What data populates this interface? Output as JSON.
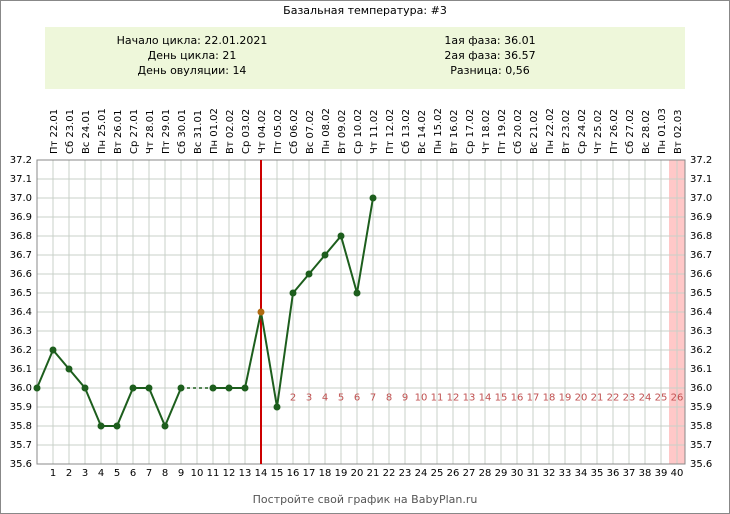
{
  "chart_data": {
    "type": "line",
    "title": "Базальная температура: #3",
    "info_left": [
      "Начало цикла: 22.01.2021",
      "День цикла: 21",
      "День овуляции: 14"
    ],
    "info_right": [
      "1ая фаза: 36.01",
      "2ая фаза: 36.57",
      "Разница: 0,56"
    ],
    "footer": "Постройте свой график на BabyPlan.ru",
    "x_top_labels": [
      "Пт 22.01",
      "Сб 23.01",
      "Вс 24.01",
      "Пн 25.01",
      "Вт 26.01",
      "Ср 27.01",
      "Чт 28.01",
      "Пт 29.01",
      "Сб 30.01",
      "Вс 31.01",
      "Пн 01.02",
      "Вт 02.02",
      "Ср 03.02",
      "Чт 04.02",
      "Пт 05.02",
      "Сб 06.02",
      "Вс 07.02",
      "Пн 08.02",
      "Вт 09.02",
      "Ср 10.02",
      "Чт 11.02",
      "Пт 12.02",
      "Сб 13.02",
      "Вс 14.02",
      "Пн 15.02",
      "Вт 16.02",
      "Ср 17.02",
      "Чт 18.02",
      "Пт 19.02",
      "Сб 20.02",
      "Вс 21.02",
      "Пн 22.02",
      "Вт 23.02",
      "Ср 24.02",
      "Чт 25.02",
      "Пт 26.02",
      "Сб 27.02",
      "Вс 28.02",
      "Пн 01.03",
      "Вт 02.03"
    ],
    "xlim": [
      0,
      40.5
    ],
    "xticks": [
      1,
      2,
      3,
      4,
      5,
      6,
      7,
      8,
      9,
      10,
      11,
      12,
      13,
      14,
      15,
      16,
      17,
      18,
      19,
      20,
      21,
      22,
      23,
      24,
      25,
      26,
      27,
      28,
      29,
      30,
      31,
      32,
      33,
      34,
      35,
      36,
      37,
      38,
      39,
      40
    ],
    "phase_day_numbers": [
      null,
      null,
      null,
      null,
      null,
      null,
      null,
      null,
      null,
      null,
      null,
      null,
      null,
      null,
      null,
      2,
      3,
      4,
      5,
      6,
      7,
      8,
      9,
      10,
      11,
      12,
      13,
      14,
      15,
      16,
      17,
      18,
      19,
      20,
      21,
      22,
      23,
      24,
      25,
      26
    ],
    "phase_day_level": 35.95,
    "ylim": [
      35.6,
      37.2
    ],
    "yticks": [
      35.6,
      35.7,
      35.8,
      35.9,
      {
        "value": 36,
        "label": "36.0"
      },
      36.1,
      36.2,
      36.3,
      36.4,
      36.5,
      36.6,
      36.7,
      36.8,
      36.9,
      {
        "value": 37,
        "label": "37.0"
      },
      37.1,
      37.2
    ],
    "grid": true,
    "series": [
      {
        "color": "#1d5e1d",
        "x": [
          0,
          1,
          2,
          3,
          4,
          5,
          6,
          7,
          8,
          9,
          10,
          11,
          12,
          13,
          14,
          15,
          16,
          17,
          18,
          19,
          20,
          21
        ],
        "values": [
          36.0,
          36.2,
          36.1,
          36.0,
          35.8,
          35.8,
          36.0,
          36.0,
          35.8,
          36.0,
          null,
          36.0,
          36.0,
          36.0,
          36.4,
          35.9,
          36.5,
          36.6,
          36.7,
          36.8,
          36.5,
          37.0
        ]
      }
    ],
    "ovulation_line": {
      "x": 14,
      "color": "#cc0000"
    },
    "ovulation_point_color": "#b06a10",
    "highlight_days": [
      40
    ],
    "highlight_color": "#ffc8c8"
  }
}
